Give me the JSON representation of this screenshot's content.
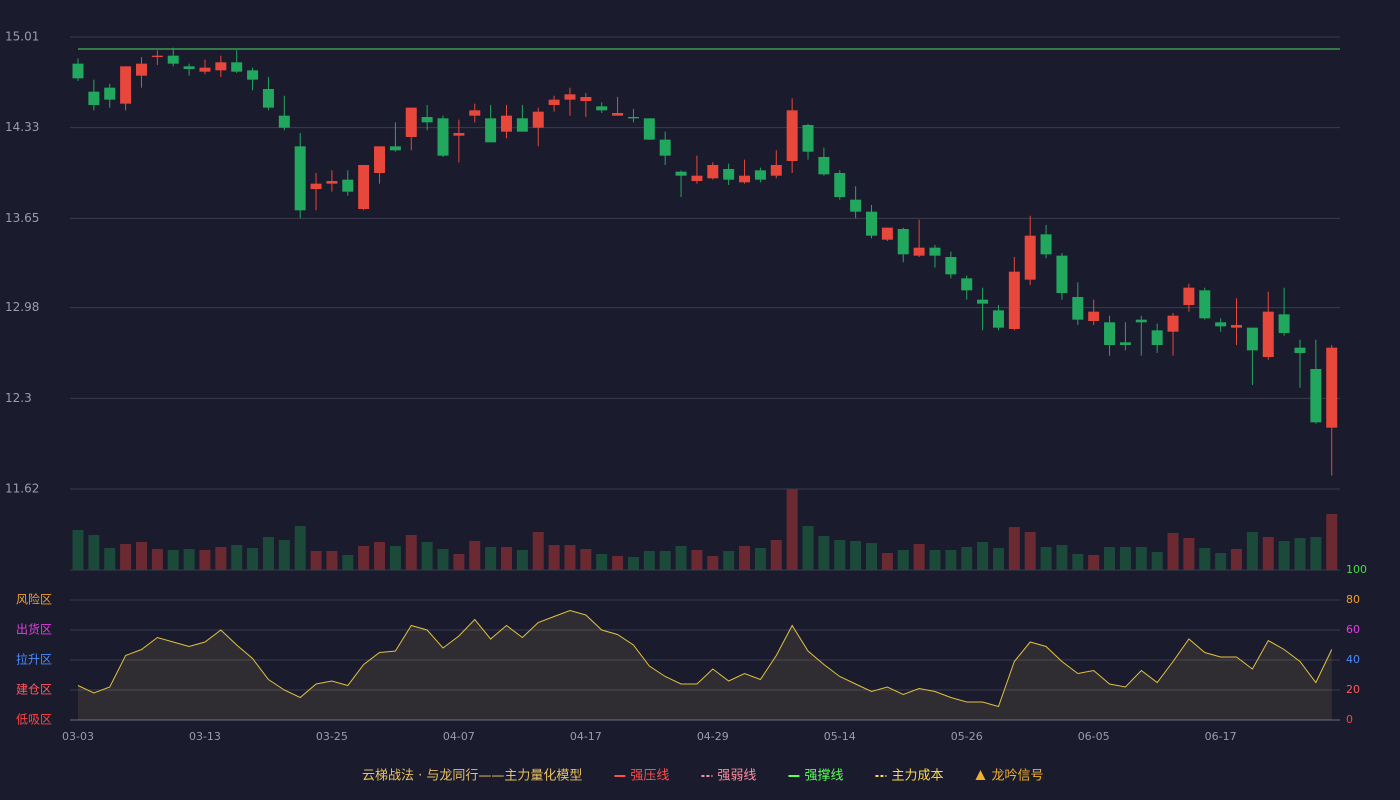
{
  "chart_data": [
    {
      "type": "candlestick",
      "open": [
        14.81,
        14.6,
        14.63,
        14.51,
        14.72,
        14.86,
        14.87,
        14.79,
        14.75,
        14.76,
        14.82,
        14.76,
        14.62,
        14.42,
        14.19,
        13.87,
        13.91,
        13.94,
        13.72,
        13.99,
        14.19,
        14.26,
        14.41,
        14.4,
        14.27,
        14.42,
        14.4,
        14.3,
        14.4,
        14.33,
        14.5,
        14.54,
        14.53,
        14.49,
        14.42,
        14.41,
        14.4,
        14.24,
        14.0,
        13.93,
        13.95,
        14.02,
        13.92,
        14.01,
        13.97,
        14.08,
        14.35,
        14.11,
        13.99,
        13.79,
        13.7,
        13.49,
        13.57,
        13.37,
        13.43,
        13.36,
        13.2,
        13.04,
        12.96,
        12.82,
        13.19,
        13.53,
        13.37,
        13.06,
        12.88,
        12.87,
        12.72,
        12.89,
        12.81,
        12.8,
        13.0,
        13.11,
        12.87,
        12.83,
        12.83,
        12.61,
        12.93,
        12.68,
        12.52,
        12.08
      ],
      "high": [
        14.85,
        14.69,
        14.66,
        14.79,
        14.86,
        14.91,
        14.93,
        14.81,
        14.84,
        14.87,
        14.91,
        14.78,
        14.71,
        14.57,
        14.29,
        13.99,
        14.01,
        14.01,
        14.05,
        14.19,
        14.37,
        14.48,
        14.5,
        14.42,
        14.39,
        14.51,
        14.5,
        14.5,
        14.5,
        14.48,
        14.57,
        14.63,
        14.59,
        14.52,
        14.56,
        14.47,
        14.4,
        14.3,
        14.01,
        14.12,
        14.07,
        14.06,
        14.09,
        14.03,
        14.16,
        14.55,
        14.36,
        14.18,
        14.01,
        13.89,
        13.75,
        13.58,
        13.58,
        13.64,
        13.45,
        13.4,
        13.22,
        13.13,
        13.0,
        13.36,
        13.67,
        13.6,
        13.39,
        13.17,
        13.04,
        12.92,
        12.87,
        12.92,
        12.86,
        12.94,
        13.16,
        13.13,
        12.9,
        13.05,
        12.83,
        13.1,
        13.13,
        12.74,
        12.74,
        12.7
      ],
      "low": [
        14.68,
        14.46,
        14.48,
        14.46,
        14.63,
        14.8,
        14.79,
        14.72,
        14.73,
        14.71,
        14.74,
        14.61,
        14.46,
        14.31,
        13.65,
        13.71,
        13.85,
        13.82,
        13.71,
        13.91,
        14.15,
        14.16,
        14.31,
        14.11,
        14.07,
        14.37,
        14.22,
        14.25,
        14.3,
        14.19,
        14.45,
        14.42,
        14.41,
        14.44,
        14.42,
        14.37,
        14.24,
        14.05,
        13.81,
        13.91,
        13.94,
        13.9,
        13.91,
        13.92,
        13.95,
        13.99,
        14.09,
        13.97,
        13.79,
        13.65,
        13.5,
        13.48,
        13.32,
        13.36,
        13.28,
        13.2,
        13.04,
        12.81,
        12.81,
        12.81,
        13.15,
        13.35,
        13.04,
        12.85,
        12.85,
        12.62,
        12.66,
        12.62,
        12.64,
        12.62,
        12.95,
        12.89,
        12.8,
        12.7,
        12.4,
        12.59,
        12.77,
        12.38,
        12.11,
        11.72
      ],
      "close": [
        14.7,
        14.5,
        14.54,
        14.79,
        14.81,
        14.87,
        14.81,
        14.77,
        14.78,
        14.82,
        14.75,
        14.69,
        14.48,
        14.33,
        13.71,
        13.91,
        13.93,
        13.85,
        14.05,
        14.19,
        14.16,
        14.48,
        14.37,
        14.12,
        14.29,
        14.46,
        14.22,
        14.42,
        14.3,
        14.45,
        14.54,
        14.58,
        14.56,
        14.46,
        14.44,
        14.4,
        14.24,
        14.12,
        13.97,
        13.97,
        14.05,
        13.94,
        13.97,
        13.94,
        14.05,
        14.46,
        14.15,
        13.98,
        13.81,
        13.7,
        13.52,
        13.58,
        13.38,
        13.43,
        13.37,
        13.23,
        13.11,
        13.01,
        12.83,
        13.25,
        13.52,
        13.38,
        13.09,
        12.89,
        12.95,
        12.7,
        12.7,
        12.87,
        12.7,
        12.92,
        13.13,
        12.9,
        12.84,
        12.85,
        12.66,
        12.95,
        12.79,
        12.64,
        12.12,
        12.68
      ],
      "up_color": "#e8473c",
      "down_color": "#22a85e",
      "ylim": [
        11.62,
        15.01
      ],
      "yticks": [
        15.01,
        14.33,
        13.65,
        12.98,
        12.3,
        11.62
      ],
      "grid": true,
      "reference_line": {
        "value": 14.92,
        "color": "#4cd964"
      }
    },
    {
      "type": "bar",
      "values": [
        40,
        35,
        22,
        26,
        28,
        21,
        20,
        21,
        20,
        23,
        25,
        22,
        33,
        30,
        44,
        19,
        19,
        15,
        24,
        28,
        24,
        35,
        28,
        21,
        16,
        29,
        23,
        23,
        20,
        38,
        25,
        25,
        21,
        16,
        14,
        13,
        19,
        19,
        24,
        20,
        14,
        19,
        24,
        22,
        30,
        81,
        44,
        34,
        30,
        29,
        27,
        17,
        20,
        26,
        20,
        20,
        23,
        28,
        22,
        43,
        38,
        23,
        25,
        16,
        15,
        23,
        23,
        23,
        18,
        37,
        32,
        22,
        17,
        21,
        38,
        33,
        29,
        32,
        33,
        56
      ],
      "up_color": "#6b2a31",
      "down_color": "#1c4a3a"
    },
    {
      "type": "area",
      "categories": [
        "03-03",
        null,
        null,
        null,
        null,
        null,
        null,
        null,
        "03-13",
        null,
        null,
        null,
        null,
        null,
        null,
        null,
        "03-25",
        null,
        null,
        null,
        null,
        null,
        null,
        null,
        "04-07",
        null,
        null,
        null,
        null,
        null,
        null,
        null,
        "04-17",
        null,
        null,
        null,
        null,
        null,
        null,
        null,
        "04-29",
        null,
        null,
        null,
        null,
        null,
        null,
        null,
        "05-14",
        null,
        null,
        null,
        null,
        null,
        null,
        null,
        "05-26",
        null,
        null,
        null,
        null,
        null,
        null,
        null,
        "06-05",
        null,
        null,
        null,
        null,
        null,
        null,
        null,
        "06-17",
        null,
        null,
        null,
        null,
        null,
        null,
        null
      ],
      "values": [
        23,
        18,
        22,
        43,
        47,
        55,
        52,
        49,
        52,
        60,
        50,
        41,
        27,
        20,
        15,
        24,
        26,
        23,
        37,
        45,
        46,
        63,
        60,
        48,
        56,
        67,
        54,
        63,
        55,
        65,
        69,
        73,
        70,
        60,
        57,
        50,
        36,
        29,
        24,
        24,
        34,
        26,
        31,
        27,
        43,
        63,
        46,
        37,
        29,
        24,
        19,
        22,
        17,
        21,
        19,
        15,
        12,
        12,
        9,
        39,
        52,
        49,
        39,
        31,
        33,
        24,
        22,
        33,
        25,
        39,
        54,
        45,
        42,
        42,
        34,
        53,
        47,
        39,
        25,
        47
      ],
      "color": "#e0c040",
      "ylim": [
        0,
        100
      ],
      "yticks": [
        {
          "value": 80,
          "label": "风险区"
        },
        {
          "value": 60,
          "label": "出货区"
        },
        {
          "value": 40,
          "label": "拉升区"
        },
        {
          "value": 20,
          "label": "建仓区"
        },
        {
          "value": 0,
          "label": "低吸区"
        }
      ],
      "ytick_colors": [
        "#f0a030",
        "#e040e0",
        "#4a8cff",
        "#ff5a5a",
        "#ff4444"
      ],
      "y2lim": [
        0,
        100
      ],
      "y2ticks": [
        100,
        80,
        60,
        40,
        20,
        0
      ],
      "y2tick_colors": [
        "#44dd44",
        "#f0a030",
        "#e040e0",
        "#4a8cff",
        "#ff5a5a",
        "#ff4444"
      ],
      "legend_title": "云梯战法 · 与龙同行——主力量化模型",
      "legend": [
        {
          "name": "强压线",
          "color": "#ff4d4d",
          "style": "solid"
        },
        {
          "name": "强弱线",
          "color": "#ff8fa0",
          "style": "dashed"
        },
        {
          "name": "强撑线",
          "color": "#5cff5c",
          "style": "solid"
        },
        {
          "name": "主力成本",
          "color": "#ffd84a",
          "style": "dashed"
        },
        {
          "name": "龙吟信号",
          "color": "#f0b030",
          "style": "triangle"
        }
      ]
    }
  ]
}
